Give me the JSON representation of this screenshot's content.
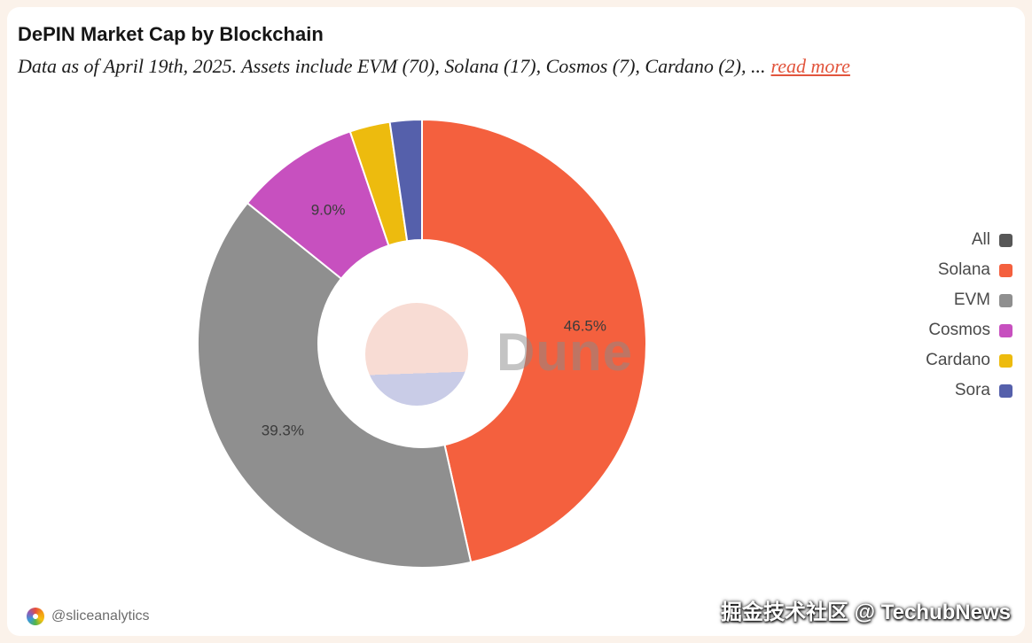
{
  "header": {
    "title": "DePIN Market Cap by Blockchain",
    "subtitle": "Data as of April 19th, 2025. Assets include EVM (70), Solana (17), Cosmos (7), Cardano (2), ...",
    "read_more": "read more"
  },
  "chart_data": {
    "type": "pie",
    "donut": true,
    "title": "DePIN Market Cap by Blockchain",
    "legend_position": "right",
    "labels_min_pct": 5,
    "start_angle_deg": 0,
    "series": [
      {
        "name": "Solana",
        "value": 46.5,
        "label": "46.5%",
        "color": "#F4603E"
      },
      {
        "name": "EVM",
        "value": 39.3,
        "label": "39.3%",
        "color": "#8F8F8F"
      },
      {
        "name": "Cosmos",
        "value": 9.0,
        "label": "9.0%",
        "color": "#C750BF"
      },
      {
        "name": "Cardano",
        "value": 2.9,
        "label": "",
        "color": "#EDBB0E"
      },
      {
        "name": "Sora",
        "value": 2.3,
        "label": "",
        "color": "#5560AB"
      }
    ],
    "legend": [
      {
        "label": "All",
        "color": "#575757"
      },
      {
        "label": "Solana",
        "color": "#F4603E"
      },
      {
        "label": "EVM",
        "color": "#8F8F8F"
      },
      {
        "label": "Cosmos",
        "color": "#C750BF"
      },
      {
        "label": "Cardano",
        "color": "#EDBB0E"
      },
      {
        "label": "Sora",
        "color": "#5560AB"
      }
    ]
  },
  "watermarks": {
    "dune": "Dune",
    "site_overlay": "掘金技术社区 @ TechubNews"
  },
  "footer": {
    "author_handle": "@sliceanalytics"
  },
  "colors": {
    "background": "#FBF2EA",
    "card": "#FFFFFF",
    "accent": "#E2553D"
  }
}
